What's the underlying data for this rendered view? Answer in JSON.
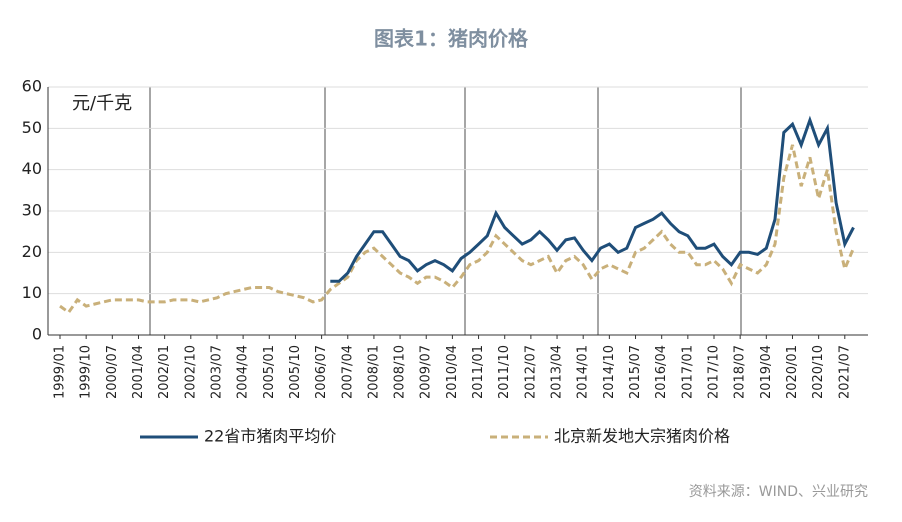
{
  "chart_data": {
    "type": "line",
    "title": "图表1：猪肉价格",
    "y_label": "元/千克",
    "source": "资料来源：WIND、兴业研究",
    "categories": [
      "1999/01",
      null,
      null,
      "1999/10",
      null,
      null,
      "2000/07",
      null,
      null,
      "2001/04",
      null,
      null,
      "2002/01",
      null,
      null,
      "2002/10",
      null,
      null,
      "2003/07",
      null,
      null,
      "2004/04",
      null,
      null,
      "2005/01",
      null,
      null,
      "2005/10",
      null,
      null,
      "2006/07",
      null,
      null,
      "2007/04",
      null,
      null,
      "2008/01",
      null,
      null,
      "2008/10",
      null,
      null,
      "2009/07",
      null,
      null,
      "2010/04",
      null,
      null,
      "2011/01",
      null,
      null,
      "2011/10",
      null,
      null,
      "2012/07",
      null,
      null,
      "2013/04",
      null,
      null,
      "2014/01",
      null,
      null,
      "2014/10",
      null,
      null,
      "2015/07",
      null,
      null,
      "2016/04",
      null,
      null,
      "2017/01",
      null,
      null,
      "2017/10",
      null,
      null,
      "2018/07",
      null,
      null,
      "2019/04",
      null,
      null,
      "2020/01",
      null,
      null,
      "2020/10",
      null,
      null,
      "2021/07",
      null
    ],
    "series": [
      {
        "name": "22省市猪肉平均价",
        "color": "#1f4e79",
        "dashed": false,
        "values": [
          null,
          null,
          null,
          null,
          null,
          null,
          null,
          null,
          null,
          null,
          null,
          null,
          null,
          null,
          null,
          null,
          null,
          null,
          null,
          null,
          null,
          null,
          null,
          null,
          null,
          null,
          null,
          null,
          null,
          null,
          null,
          13,
          13,
          15,
          19,
          22,
          25,
          25,
          22,
          19,
          18,
          15.5,
          17,
          18,
          17,
          15.5,
          18.5,
          20,
          22,
          24,
          29.5,
          26,
          24,
          22,
          23,
          25,
          23,
          20.5,
          23,
          23.5,
          20.5,
          18,
          21,
          22,
          20,
          21,
          26,
          27,
          28,
          29.5,
          27,
          25,
          24,
          21,
          21,
          22,
          19,
          17,
          20,
          20,
          19.5,
          21,
          28,
          49,
          51,
          46,
          52,
          46,
          50,
          32,
          22,
          26
        ]
      },
      {
        "name": "北京新发地大宗猪肉价格",
        "color": "#c9b07a",
        "dashed": true,
        "values": [
          7,
          5.5,
          8.5,
          7,
          7.5,
          8,
          8.5,
          8.5,
          8.5,
          8.5,
          8,
          8,
          8,
          8.5,
          8.5,
          8.5,
          8,
          8.5,
          9,
          10,
          10.5,
          11,
          11.5,
          11.5,
          11.5,
          10.5,
          10,
          9.5,
          9,
          8,
          8.5,
          11,
          12.5,
          14,
          18,
          20,
          21,
          19,
          17,
          15,
          14,
          12.5,
          14,
          14,
          13,
          11.5,
          14,
          17,
          18,
          20,
          24,
          22,
          20,
          18,
          17,
          18,
          19,
          15,
          18,
          19,
          17,
          13.5,
          16,
          17,
          16,
          15,
          20,
          21,
          23,
          25,
          22,
          20,
          20,
          17,
          17,
          18,
          16,
          12.5,
          17,
          16,
          15,
          17,
          22,
          38,
          46,
          36,
          43,
          33,
          40,
          25,
          16,
          21
        ]
      }
    ],
    "ylim": [
      0,
      60
    ],
    "yticks": [
      0,
      10,
      20,
      30,
      40,
      50,
      60
    ],
    "grid": true
  }
}
